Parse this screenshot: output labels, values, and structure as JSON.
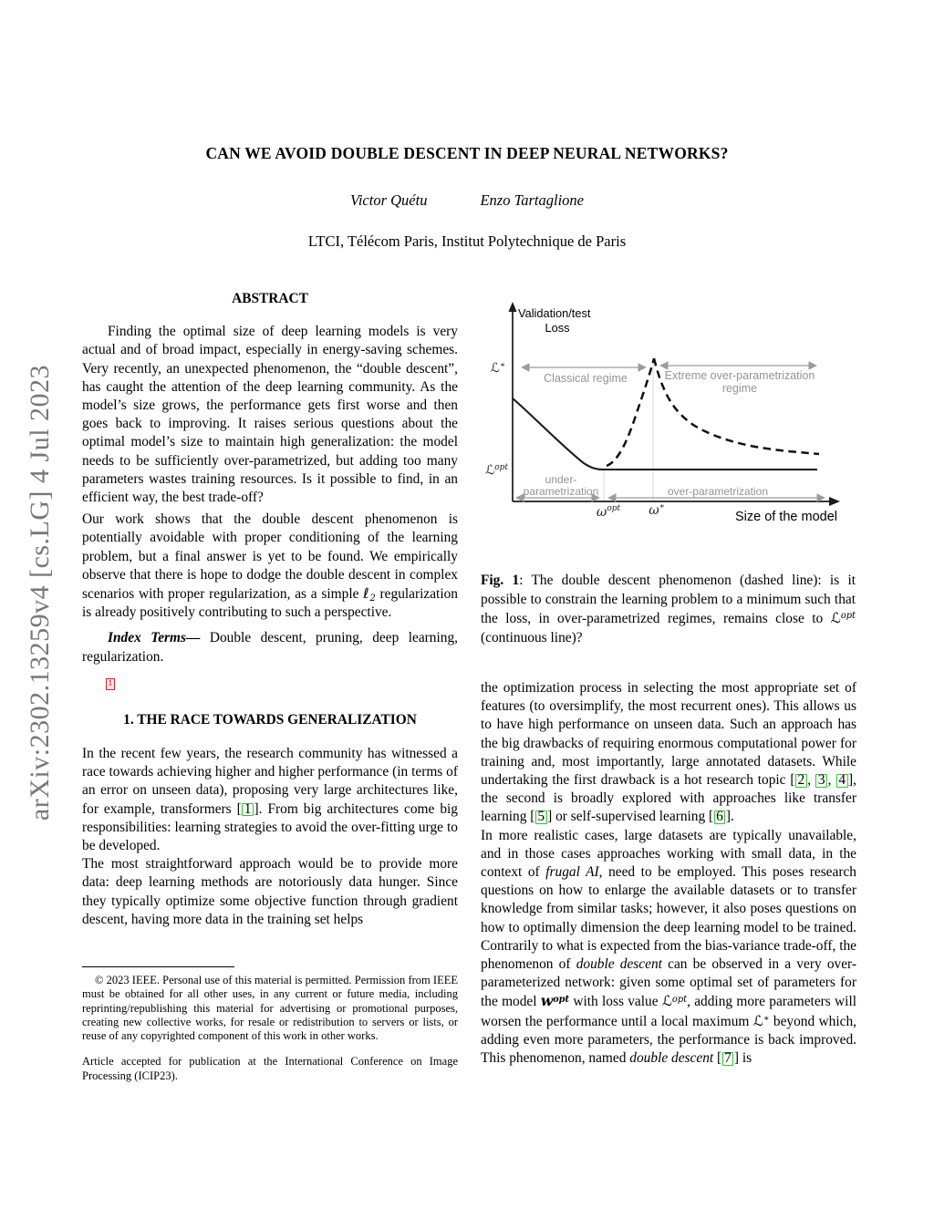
{
  "banner": "arXiv:2302.13259v4  [cs.LG]  4 Jul 2023",
  "header": {
    "title": "CAN WE AVOID DOUBLE DESCENT IN DEEP NEURAL NETWORKS?",
    "authors": [
      "Victor Quétu",
      "Enzo Tartaglione"
    ],
    "affiliation": "LTCI, Télécom Paris, Institut Polytechnique de Paris"
  },
  "abstract": {
    "heading": "ABSTRACT",
    "para1": "Finding the optimal size of deep learning models is very actual and of broad impact, especially in energy-saving schemes. Very recently, an unexpected phenomenon, the “double descent”, has caught the attention of the deep learning community. As the model’s size grows, the performance gets first worse and then goes back to improving. It raises serious questions about the optimal model’s size to maintain high generalization: the model needs to be sufficiently over-parametrized, but adding too many parameters wastes training resources. Is it possible to find, in an efficient way, the best trade-off?",
    "para2_rich": [
      {
        "t": "Our work shows that the double descent phenomenon is potentially avoidable with proper conditioning of the learning problem, but a final answer is yet to be found. We empirically observe that there is hope to dodge the double descent in complex scenarios with proper regularization, as a simple "
      },
      {
        "m": "ℓ",
        "sub": "2"
      },
      {
        "t": " regularization is already positively contributing to such a perspective."
      }
    ],
    "index_terms_rich": [
      {
        "bi": "Index Terms—"
      },
      {
        "t": " Double descent, pruning, deep learning, regularization."
      }
    ],
    "footnote_marker": "1"
  },
  "section1": {
    "heading": "1.  THE RACE TOWARDS GENERALIZATION",
    "para1_rich": [
      {
        "t": "In the recent few years, the research community has witnessed a race towards achieving higher and higher performance (in terms of an error on unseen data), proposing very large architectures like, for example, transformers ["
      },
      {
        "cite": "1"
      },
      {
        "t": "]. From big architectures come big responsibilities: learning strategies to avoid the over-fitting urge to be developed."
      }
    ],
    "para2": "The most straightforward approach would be to provide more data: deep learning methods are notoriously data hunger. Since they typically optimize some objective function through gradient descent, having more data in the training set helps"
  },
  "footnote": {
    "para1": "© 2023 IEEE. Personal use of this material is permitted. Permission from IEEE must be obtained for all other uses, in any current or future media, including reprinting/republishing this material for advertising or promotional purposes, creating new collective works, for resale or redistribution to servers or lists, or reuse of any copyrighted component of this work in other works.",
    "para2": "Article accepted for publication at the International Conference on Image Processing (ICIP23)."
  },
  "figure": {
    "ylabel1": "Validation/test",
    "ylabel2": "Loss",
    "ytick1_base": "ℒ",
    "ytick1_sup": "∗",
    "ytick2_base": "ℒ",
    "ytick2_sup": "opt",
    "region1": "Classical regime",
    "region2a": "Extreme over-parametrization",
    "region2b": "regime",
    "under1": "under-",
    "under2": "parametrization",
    "over": "over-parametrization",
    "xtick1_base": "ω",
    "xtick1_sup": "opt",
    "xtick2_base": "ω",
    "xtick2_sup": "∗",
    "xlabel": "Size of the model"
  },
  "caption_rich": [
    {
      "b": "Fig. 1"
    },
    {
      "t": ": The double descent phenomenon (dashed line): is it possible to constrain the learning problem to a minimum such that the loss, in over-parametrized regimes, remains close to "
    },
    {
      "m": "ℒ",
      "sup": "opt"
    },
    {
      "t": " (continuous line)?"
    }
  ],
  "right_column": {
    "para1_rich": [
      {
        "t": "the optimization process in selecting the most appropriate set of features (to oversimplify, the most recurrent ones). This allows us to have high performance on unseen data. Such an approach has the big drawbacks of requiring enormous computational power for training and, most importantly, large annotated datasets. While undertaking the first drawback is a hot research topic ["
      },
      {
        "cite": "2"
      },
      {
        "t": ", "
      },
      {
        "cite": "3"
      },
      {
        "t": ", "
      },
      {
        "cite": "4"
      },
      {
        "t": "], the second is broadly explored with approaches like transfer learning ["
      },
      {
        "cite": "5"
      },
      {
        "t": "] or self-supervised learning ["
      },
      {
        "cite": "6"
      },
      {
        "t": "]."
      }
    ],
    "para2_rich": [
      {
        "t": "In more realistic cases, large datasets are typically unavailable, and in those cases approaches working with small data, in the context of "
      },
      {
        "i": "frugal AI"
      },
      {
        "t": ", need to be employed. This poses research questions on how to enlarge the available datasets or to transfer knowledge from similar tasks; however, it also poses questions on how to optimally dimension the deep learning model to be trained. Contrarily to what is expected from the bias-variance trade-off, the phenomenon of "
      },
      {
        "i": "double descent"
      },
      {
        "t": " can be observed in a very over-parameterized network: given some optimal set of parameters for the model "
      },
      {
        "m": "w",
        "sup": "opt",
        "bold": true
      },
      {
        "t": " with loss value "
      },
      {
        "m": "ℒ",
        "sup": "opt"
      },
      {
        "t": ", adding more parameters will worsen the performance until a local maximum "
      },
      {
        "m": "ℒ",
        "sup": "∗"
      },
      {
        "t": " beyond which, adding even more parameters, the performance is back improved. This phenomenon, named "
      },
      {
        "i": "double descent"
      },
      {
        "t": " ["
      },
      {
        "cite": "7"
      },
      {
        "t": "] is"
      }
    ]
  }
}
